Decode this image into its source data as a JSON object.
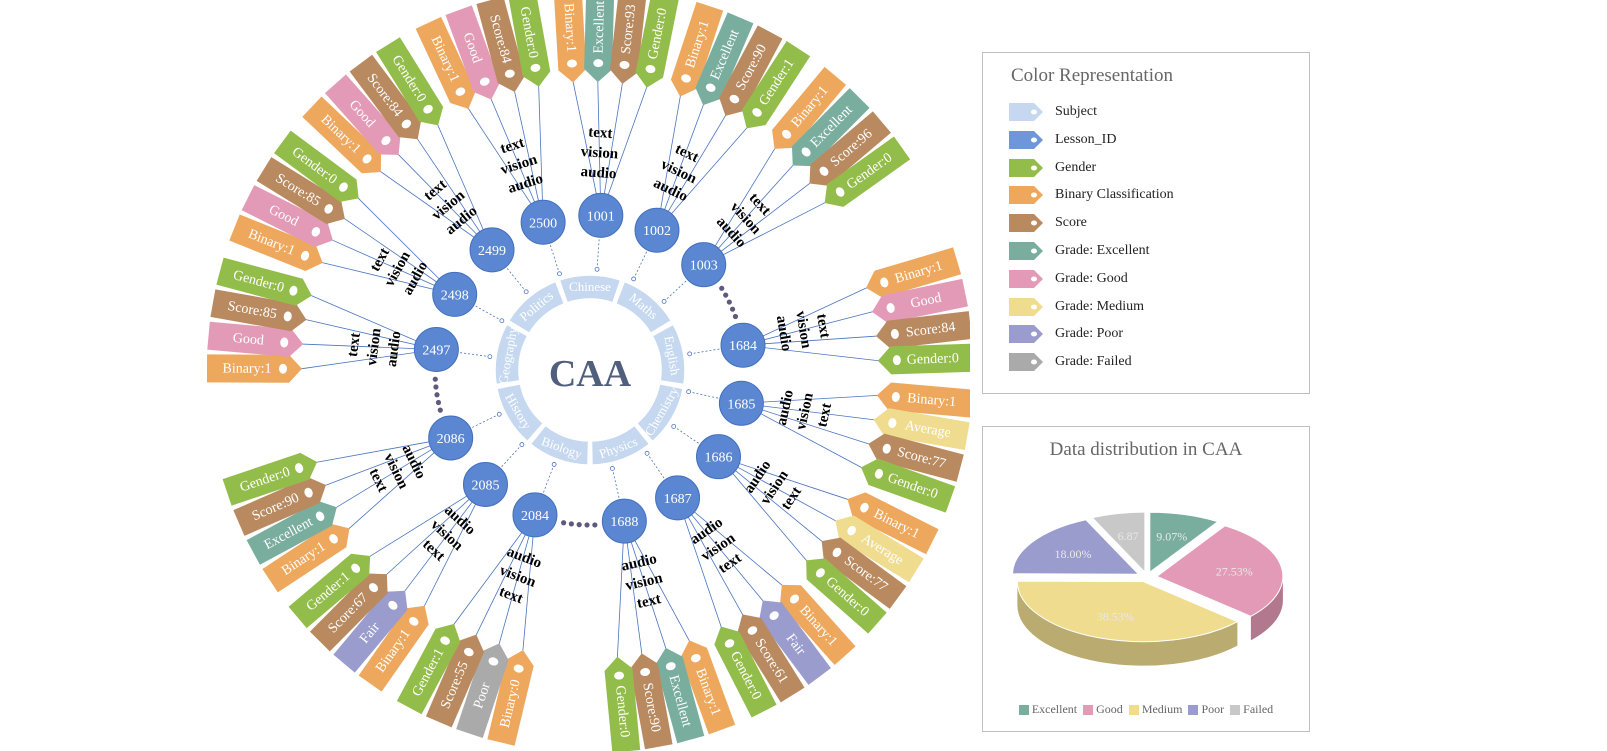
{
  "diagram": {
    "center_label": "CAA",
    "modalities": [
      "audio",
      "vision",
      "text"
    ],
    "subjects": [
      "Chinese",
      "Maths",
      "English",
      "Chemistry",
      "Physics",
      "Biology",
      "History",
      "Geography",
      "Politics"
    ],
    "lessons": [
      {
        "id": "1001",
        "tags": [
          {
            "type": "Binary Classification",
            "text": "Binary:1"
          },
          {
            "type": "Grade: Excellent",
            "text": "Excellent"
          },
          {
            "type": "Score",
            "text": "Score:93"
          },
          {
            "type": "Gender",
            "text": "Gender:0"
          }
        ]
      },
      {
        "id": "1002",
        "tags": [
          {
            "type": "Binary Classification",
            "text": "Binary:1"
          },
          {
            "type": "Grade: Excellent",
            "text": "Excellent"
          },
          {
            "type": "Score",
            "text": "Score:90"
          },
          {
            "type": "Gender",
            "text": "Gender:1"
          }
        ]
      },
      {
        "id": "1003",
        "tags": [
          {
            "type": "Binary Classification",
            "text": "Binary:1"
          },
          {
            "type": "Grade: Excellent",
            "text": "Excellent"
          },
          {
            "type": "Score",
            "text": "Score:96"
          },
          {
            "type": "Gender",
            "text": "Gender:0"
          }
        ]
      },
      {
        "id": "1684",
        "tags": [
          {
            "type": "Binary Classification",
            "text": "Binary:1"
          },
          {
            "type": "Grade: Good",
            "text": "Good"
          },
          {
            "type": "Score",
            "text": "Score:84"
          },
          {
            "type": "Gender",
            "text": "Gender:0"
          }
        ]
      },
      {
        "id": "1685",
        "tags": [
          {
            "type": "Binary Classification",
            "text": "Binary:1"
          },
          {
            "type": "Grade: Medium",
            "text": "Average"
          },
          {
            "type": "Score",
            "text": "Score:77"
          },
          {
            "type": "Gender",
            "text": "Gender:0"
          }
        ]
      },
      {
        "id": "1686",
        "tags": [
          {
            "type": "Binary Classification",
            "text": "Binary:1"
          },
          {
            "type": "Grade: Medium",
            "text": "Average"
          },
          {
            "type": "Score",
            "text": "Score:77"
          },
          {
            "type": "Gender",
            "text": "Gender:0"
          }
        ]
      },
      {
        "id": "1687",
        "tags": [
          {
            "type": "Binary Classification",
            "text": "Binary:1"
          },
          {
            "type": "Grade: Poor",
            "text": "Fair"
          },
          {
            "type": "Score",
            "text": "Score:61"
          },
          {
            "type": "Gender",
            "text": "Gender:0"
          }
        ]
      },
      {
        "id": "1688",
        "tags": [
          {
            "type": "Binary Classification",
            "text": "Binary:1"
          },
          {
            "type": "Grade: Excellent",
            "text": "Excellent"
          },
          {
            "type": "Score",
            "text": "Score:90"
          },
          {
            "type": "Gender",
            "text": "Gender:0"
          }
        ]
      },
      {
        "id": "2084",
        "tags": [
          {
            "type": "Binary Classification",
            "text": "Binary:0"
          },
          {
            "type": "Grade: Failed",
            "text": "Poor"
          },
          {
            "type": "Score",
            "text": "Score:55"
          },
          {
            "type": "Gender",
            "text": "Gender:1"
          }
        ]
      },
      {
        "id": "2085",
        "tags": [
          {
            "type": "Binary Classification",
            "text": "Binary:1"
          },
          {
            "type": "Grade: Poor",
            "text": "Fair"
          },
          {
            "type": "Score",
            "text": "Score:67"
          },
          {
            "type": "Gender",
            "text": "Gender:1"
          }
        ]
      },
      {
        "id": "2086",
        "tags": [
          {
            "type": "Binary Classification",
            "text": "Binary:1"
          },
          {
            "type": "Grade: Excellent",
            "text": "Excellent"
          },
          {
            "type": "Score",
            "text": "Score:90"
          },
          {
            "type": "Gender",
            "text": "Gender:0"
          }
        ]
      },
      {
        "id": "2497",
        "tags": [
          {
            "type": "Binary Classification",
            "text": "Binary:1"
          },
          {
            "type": "Grade: Good",
            "text": "Good"
          },
          {
            "type": "Score",
            "text": "Score:85"
          },
          {
            "type": "Gender",
            "text": "Gender:0"
          }
        ]
      },
      {
        "id": "2498",
        "tags": [
          {
            "type": "Binary Classification",
            "text": "Binary:1"
          },
          {
            "type": "Grade: Good",
            "text": "Good"
          },
          {
            "type": "Score",
            "text": "Score:85"
          },
          {
            "type": "Gender",
            "text": "Gender:0"
          }
        ]
      },
      {
        "id": "2499",
        "tags": [
          {
            "type": "Binary Classification",
            "text": "Binary:1"
          },
          {
            "type": "Grade: Good",
            "text": "Good"
          },
          {
            "type": "Score",
            "text": "Score:84"
          },
          {
            "type": "Gender",
            "text": "Gender:0"
          }
        ]
      },
      {
        "id": "2500",
        "tags": [
          {
            "type": "Binary Classification",
            "text": "Binary:1"
          },
          {
            "type": "Grade: Good",
            "text": "Good"
          },
          {
            "type": "Score",
            "text": "Score:84"
          },
          {
            "type": "Gender",
            "text": "Gender:0"
          }
        ]
      }
    ]
  },
  "legend": {
    "title": "Color Representation",
    "items": [
      {
        "label": "Subject",
        "color": "#c5d8f0"
      },
      {
        "label": "Lesson_ID",
        "color": "#6f96d8"
      },
      {
        "label": "Gender",
        "color": "#93bd4a"
      },
      {
        "label": "Binary Classification",
        "color": "#eea85e"
      },
      {
        "label": "Score",
        "color": "#b98a60"
      },
      {
        "label": "Grade: Excellent",
        "color": "#79ae9f"
      },
      {
        "label": "Grade: Good",
        "color": "#e39ab6"
      },
      {
        "label": "Grade: Medium",
        "color": "#efdc8f"
      },
      {
        "label": "Grade: Poor",
        "color": "#9a9ccd"
      },
      {
        "label": "Grade: Failed",
        "color": "#aaaaaa"
      }
    ]
  },
  "chart_data": {
    "type": "pie",
    "title": "Data distribution in CAA",
    "categories": [
      "Excellent",
      "Good",
      "Medium",
      "Poor",
      "Failed"
    ],
    "values": [
      9.07,
      27.53,
      38.53,
      18.0,
      6.87
    ],
    "labels": [
      "9.07%",
      "27.53%",
      "38.53%",
      "18.00%",
      "6.87"
    ],
    "colors": [
      "#79ae9f",
      "#e39ab6",
      "#efdc8f",
      "#9a9ccd",
      "#c8c8c8"
    ],
    "legend_position": "bottom",
    "style": "3d"
  },
  "colors": {
    "node": "#5b87d2",
    "node_stroke": "#4370bd",
    "line": "#4a74bf",
    "subject_ring": "#c5d8f0",
    "dots": "#5f5a7d"
  }
}
